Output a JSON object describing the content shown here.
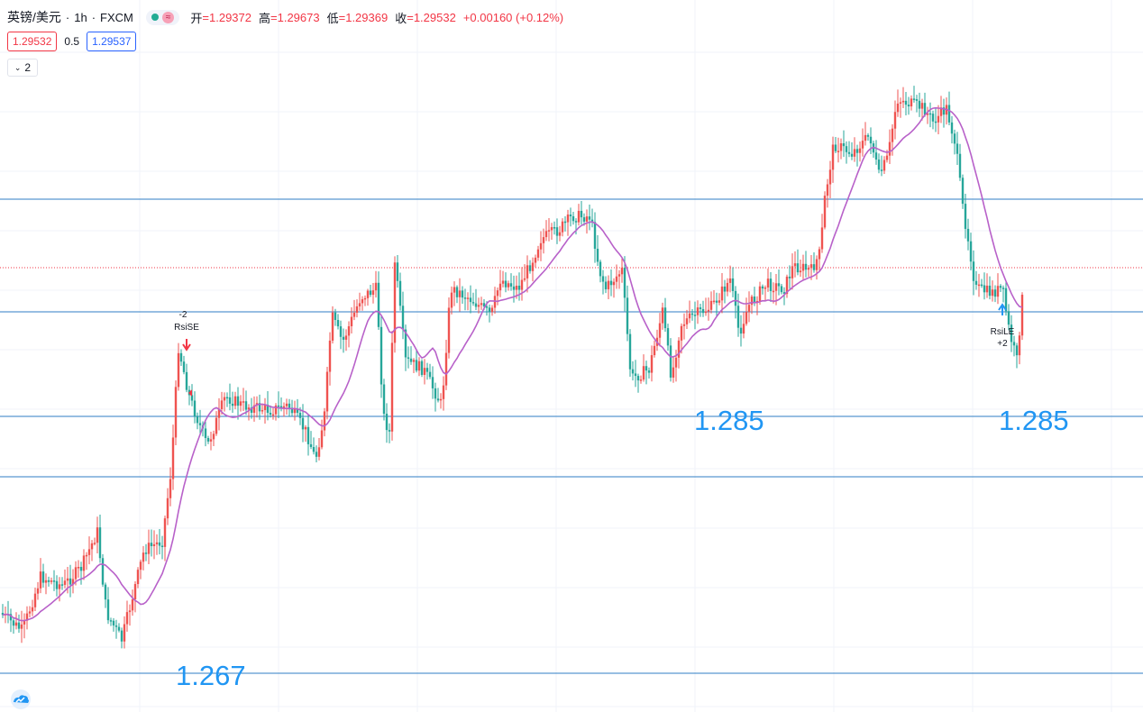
{
  "header": {
    "symbol": "英镑/美元",
    "interval": "1h",
    "exchange": "FXCM",
    "open_label": "开",
    "open_value": "=1.29372",
    "high_label": "高",
    "high_value": "=1.29673",
    "low_label": "低",
    "low_value": "=1.29369",
    "close_label": "收",
    "close_value": "=1.29532",
    "change": "+0.00160 (+0.12%)",
    "sell_price": "1.29532",
    "spread": "0.5",
    "buy_price": "1.29537",
    "indicator_count": "2",
    "sep1": "·",
    "sep2": "·",
    "wave_glyph": "≈"
  },
  "colors": {
    "up": "#ef5350",
    "down": "#26a69a",
    "ma": "#b861c9",
    "hline": "#2f7ec4",
    "grid": "#f0f3fa",
    "label": "#2196f3"
  },
  "chart_data": {
    "type": "candlestick",
    "series": [
      {
        "name": "RsiSE",
        "type": "signal",
        "text": [
          "-2",
          "RsiSE"
        ]
      },
      {
        "name": "RsiLE",
        "type": "signal",
        "text": [
          "RsiLE",
          "+2"
        ]
      }
    ],
    "level_labels": [
      "1.267",
      "1.285",
      "1.285"
    ],
    "horizontal_levels": 5,
    "moving_average": true,
    "grid": true
  }
}
